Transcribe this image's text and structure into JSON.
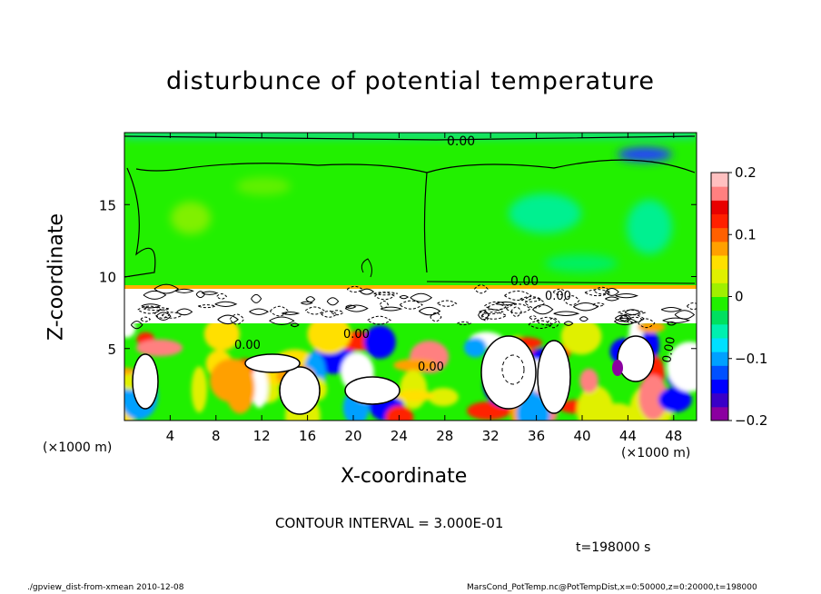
{
  "chart_data": {
    "type": "heatmap",
    "title": "disturbunce of potential temperature",
    "xlabel": "X-coordinate",
    "ylabel": "Z-coordinate",
    "x_unit": "(×1000 m)",
    "y_unit": "(×1000 m)",
    "xlim": [
      0,
      50
    ],
    "ylim": [
      0,
      20
    ],
    "x_ticks": [
      4,
      8,
      12,
      16,
      20,
      24,
      28,
      32,
      36,
      40,
      44,
      48
    ],
    "y_ticks": [
      5,
      10,
      15
    ],
    "colorbar": {
      "range": [
        -0.2,
        0.2
      ],
      "ticks": [
        {
          "value": 0.2,
          "label": "0.2"
        },
        {
          "value": 0.1,
          "label": "0.1"
        },
        {
          "value": 0,
          "label": "0"
        },
        {
          "value": -0.1,
          "label": "−0.1"
        },
        {
          "value": -0.2,
          "label": "−0.2"
        }
      ],
      "colors": [
        "#8b00a0",
        "#3a00c8",
        "#0000ff",
        "#0050ff",
        "#00a0ff",
        "#00e0ff",
        "#00f0b0",
        "#00e060",
        "#20f000",
        "#a0f000",
        "#e0f000",
        "#ffe000",
        "#ffa000",
        "#ff6000",
        "#ff2000",
        "#e80000",
        "#ff8080",
        "#ffc0c0"
      ]
    },
    "contour_labels": [
      "0.00",
      "0.00",
      "0.00",
      "0.00",
      "0.00",
      "0.00",
      "0.00"
    ],
    "contour_interval": "CONTOUR INTERVAL = 3.000E-01",
    "time": "t=198000 s"
  },
  "footer": {
    "left": "./gpview_dist-from-xmean  2010-12-08",
    "right": "MarsCond_PotTemp.nc@PotTempDist,x=0:50000,z=0:20000,t=198000"
  }
}
